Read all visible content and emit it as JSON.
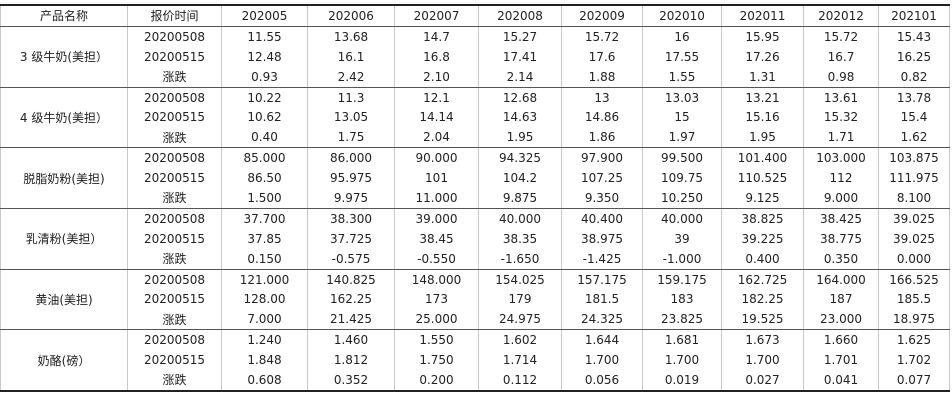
{
  "table": {
    "headers": [
      "产品名称",
      "报价时间",
      "202005",
      "202006",
      "202007",
      "202008",
      "202009",
      "202010",
      "202011",
      "202012",
      "202101"
    ],
    "groups": [
      {
        "product": "3 级牛奶(美担）",
        "rows": [
          {
            "label": "20200508",
            "values": [
              "11.55",
              "13.68",
              "14.7",
              "15.27",
              "15.72",
              "16",
              "15.95",
              "15.72",
              "15.43"
            ]
          },
          {
            "label": "20200515",
            "values": [
              "12.48",
              "16.1",
              "16.8",
              "17.41",
              "17.6",
              "17.55",
              "17.26",
              "16.7",
              "16.25"
            ]
          },
          {
            "label": "涨跌",
            "values": [
              "0.93",
              "2.42",
              "2.10",
              "2.14",
              "1.88",
              "1.55",
              "1.31",
              "0.98",
              "0.82"
            ]
          }
        ]
      },
      {
        "product": "4 级牛奶(美担）",
        "rows": [
          {
            "label": "20200508",
            "values": [
              "10.22",
              "11.3",
              "12.1",
              "12.68",
              "13",
              "13.03",
              "13.21",
              "13.61",
              "13.78"
            ]
          },
          {
            "label": "20200515",
            "values": [
              "10.62",
              "13.05",
              "14.14",
              "14.63",
              "14.86",
              "15",
              "15.16",
              "15.32",
              "15.4"
            ]
          },
          {
            "label": "涨跌",
            "values": [
              "0.40",
              "1.75",
              "2.04",
              "1.95",
              "1.86",
              "1.97",
              "1.95",
              "1.71",
              "1.62"
            ]
          }
        ]
      },
      {
        "product": "脱脂奶粉(美担)",
        "rows": [
          {
            "label": "20200508",
            "values": [
              "85.000",
              "86.000",
              "90.000",
              "94.325",
              "97.900",
              "99.500",
              "101.400",
              "103.000",
              "103.875"
            ]
          },
          {
            "label": "20200515",
            "values": [
              "86.50",
              "95.975",
              "101",
              "104.2",
              "107.25",
              "109.75",
              "110.525",
              "112",
              "111.975"
            ]
          },
          {
            "label": "涨跌",
            "values": [
              "1.500",
              "9.975",
              "11.000",
              "9.875",
              "9.350",
              "10.250",
              "9.125",
              "9.000",
              "8.100"
            ]
          }
        ]
      },
      {
        "product": "乳清粉(美担）",
        "rows": [
          {
            "label": "20200508",
            "values": [
              "37.700",
              "38.300",
              "39.000",
              "40.000",
              "40.400",
              "40.000",
              "38.825",
              "38.425",
              "39.025"
            ]
          },
          {
            "label": "20200515",
            "values": [
              "37.85",
              "37.725",
              "38.45",
              "38.35",
              "38.975",
              "39",
              "39.225",
              "38.775",
              "39.025"
            ]
          },
          {
            "label": "涨跌",
            "values": [
              "0.150",
              "-0.575",
              "-0.550",
              "-1.650",
              "-1.425",
              "-1.000",
              "0.400",
              "0.350",
              "0.000"
            ]
          }
        ]
      },
      {
        "product": "黄油(美担)",
        "rows": [
          {
            "label": "20200508",
            "values": [
              "121.000",
              "140.825",
              "148.000",
              "154.025",
              "157.175",
              "159.175",
              "162.725",
              "164.000",
              "166.525"
            ]
          },
          {
            "label": "20200515",
            "values": [
              "128.00",
              "162.25",
              "173",
              "179",
              "181.5",
              "183",
              "182.25",
              "187",
              "185.5"
            ]
          },
          {
            "label": "涨跌",
            "values": [
              "7.000",
              "21.425",
              "25.000",
              "24.975",
              "24.325",
              "23.825",
              "19.525",
              "23.000",
              "18.975"
            ]
          }
        ]
      },
      {
        "product": "奶酪(磅）",
        "rows": [
          {
            "label": "20200508",
            "values": [
              "1.240",
              "1.460",
              "1.550",
              "1.602",
              "1.644",
              "1.681",
              "1.673",
              "1.660",
              "1.625"
            ]
          },
          {
            "label": "20200515",
            "values": [
              "1.848",
              "1.812",
              "1.750",
              "1.714",
              "1.700",
              "1.700",
              "1.700",
              "1.701",
              "1.702"
            ]
          },
          {
            "label": "涨跌",
            "values": [
              "0.608",
              "0.352",
              "0.200",
              "0.112",
              "0.056",
              "0.019",
              "0.027",
              "0.041",
              "0.077"
            ]
          }
        ]
      }
    ]
  }
}
